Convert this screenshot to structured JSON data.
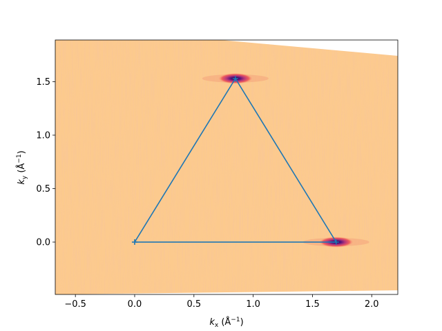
{
  "chart_data": {
    "type": "line",
    "title": "",
    "xlabel": "k_x (Å^{-1})",
    "ylabel": "k_y (Å^{-1})",
    "xlim": [
      -0.67,
      2.22
    ],
    "ylim": [
      -0.49,
      1.89
    ],
    "x_ticks": [
      -0.5,
      0.0,
      0.5,
      1.0,
      1.5,
      2.0
    ],
    "x_tick_labels": [
      "−0.5",
      "0.0",
      "0.5",
      "1.0",
      "1.5",
      "2.0"
    ],
    "y_ticks": [
      0.0,
      0.5,
      1.0,
      1.5
    ],
    "y_tick_labels": [
      "0.0",
      "0.5",
      "1.0",
      "1.5"
    ],
    "grid": false,
    "legend": "none",
    "background": {
      "type": "heatmap",
      "colormap": "magma_r",
      "base_color": "#fcca8d",
      "hot_spots": [
        {
          "x": 0.85,
          "y": 1.53
        },
        {
          "x": 1.7,
          "y": 0.0
        }
      ]
    },
    "series": [
      {
        "color": "#1f77b4",
        "marker": "+",
        "x": [
          0.0,
          0.85,
          1.7,
          0.0
        ],
        "y": [
          0.0,
          1.53,
          0.0,
          0.0
        ]
      }
    ]
  },
  "labels": {
    "xlabel_main": "k",
    "xlabel_sub": "x",
    "xlabel_unit": " (Å",
    "xlabel_exp": "−1",
    "xlabel_close": ")",
    "ylabel_main": "k",
    "ylabel_sub": "y",
    "ylabel_unit": " (Å",
    "ylabel_exp": "−1",
    "ylabel_close": ")"
  }
}
